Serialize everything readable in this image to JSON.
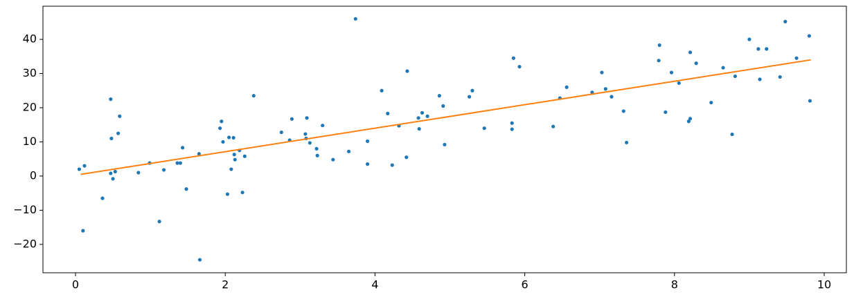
{
  "chart_data": {
    "type": "scatter",
    "xlim": [
      -0.435,
      10.296
    ],
    "ylim": [
      -28.3,
      49.7
    ],
    "xticks": [
      0,
      2,
      4,
      6,
      8,
      10
    ],
    "yticks": [
      {
        "value": -20,
        "label": "−20"
      },
      {
        "value": -10,
        "label": "−10"
      },
      0,
      10,
      20,
      30,
      40
    ],
    "series": [
      {
        "type": "scatter",
        "color": "#1f77b4",
        "x": [
          0.05,
          0.12,
          0.1,
          0.36,
          0.47,
          0.48,
          0.47,
          0.5,
          0.53,
          0.57,
          0.59,
          0.84,
          0.99,
          1.12,
          1.18,
          1.36,
          1.4,
          1.43,
          1.48,
          1.65,
          1.66,
          1.93,
          1.95,
          1.97,
          2.03,
          2.05,
          2.08,
          2.11,
          2.12,
          2.13,
          2.19,
          2.23,
          2.26,
          2.38,
          2.75,
          2.86,
          2.89,
          3.07,
          3.08,
          3.09,
          3.13,
          3.22,
          3.23,
          3.3,
          3.44,
          3.65,
          3.74,
          3.9,
          3.9,
          4.09,
          4.17,
          4.23,
          4.32,
          4.42,
          4.43,
          4.58,
          4.59,
          4.63,
          4.7,
          4.86,
          4.91,
          4.93,
          5.26,
          5.3,
          5.46,
          5.83,
          5.83,
          5.85,
          5.93,
          6.38,
          6.47,
          6.56,
          6.9,
          7.03,
          7.08,
          7.16,
          7.32,
          7.36,
          7.79,
          7.8,
          7.88,
          7.96,
          8.06,
          8.19,
          8.21,
          8.21,
          8.29,
          8.49,
          8.65,
          8.77,
          8.81,
          9.0,
          9.12,
          9.14,
          9.23,
          9.41,
          9.48,
          9.63,
          9.8,
          9.81
        ],
        "values": [
          2,
          3,
          -16,
          -6.5,
          22.5,
          11,
          0.8,
          -0.8,
          1.3,
          12.5,
          17.5,
          1,
          3.8,
          -13.3,
          1.8,
          3.8,
          3.8,
          8.3,
          -3.8,
          6.5,
          -24.5,
          14,
          16,
          10,
          -5.3,
          11.3,
          2,
          11.2,
          6.3,
          4.8,
          7.5,
          -4.8,
          5.8,
          23.5,
          12.8,
          10.5,
          16.7,
          12.3,
          11,
          17,
          9.7,
          8,
          6,
          14.8,
          4.8,
          7.2,
          46,
          10.2,
          3.5,
          25,
          18.3,
          3.2,
          14.7,
          5.5,
          30.7,
          17,
          13.8,
          18.5,
          17.5,
          23.5,
          20.5,
          9.2,
          23.2,
          25,
          14,
          15.5,
          13.7,
          34.5,
          32,
          14.5,
          22.8,
          26,
          24.5,
          30.3,
          25.5,
          23.2,
          19,
          9.8,
          33.8,
          38.3,
          18.7,
          30.3,
          27.2,
          16,
          16.8,
          36.2,
          33,
          21.5,
          31.7,
          12.2,
          29.2,
          40,
          37.2,
          28.3,
          37.2,
          29,
          45.2,
          34.5,
          41,
          22
        ]
      },
      {
        "type": "line",
        "color": "#ff7f0e",
        "x": [
          0.07,
          9.82
        ],
        "values": [
          0.5,
          34
        ]
      }
    ]
  }
}
